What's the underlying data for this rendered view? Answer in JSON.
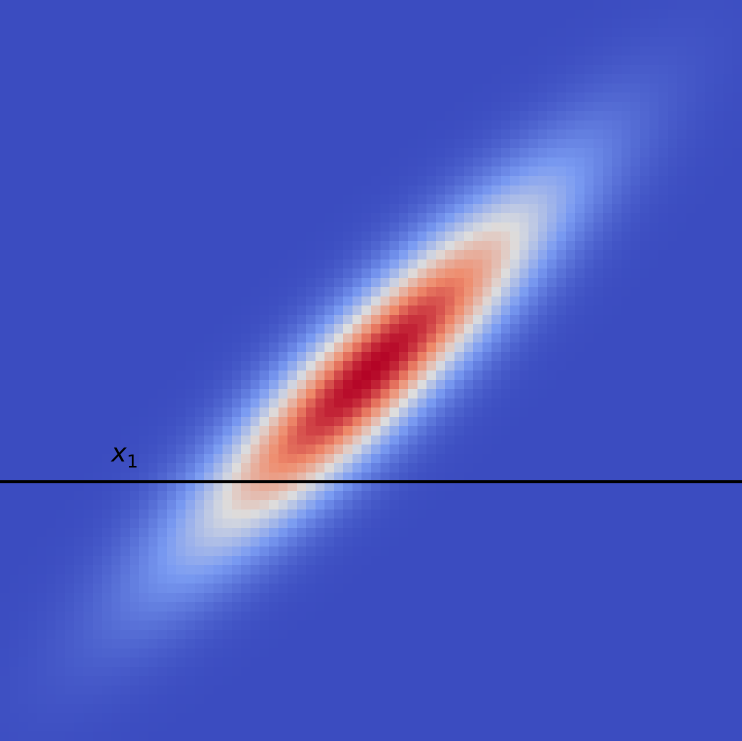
{
  "chart_data": {
    "type": "heatmap",
    "title": "",
    "xlabel": "",
    "ylabel": "",
    "colormap": "coolwarm",
    "colors": {
      "low": "#3b4cc0",
      "mid": "#dddddd",
      "high": "#b40426",
      "line": "#000000"
    },
    "grid_cells": 80,
    "xlim": [
      -3,
      3
    ],
    "ylim": [
      -3,
      3
    ],
    "distribution": {
      "kind": "bivariate-gaussian",
      "mean": [
        0.0,
        0.0
      ],
      "std": [
        1.0,
        1.0
      ],
      "correlation": 0.9
    },
    "horizontal_line": {
      "y": -0.9,
      "label_main": "x",
      "label_sub": "1"
    },
    "grid": false,
    "axes_visible": false
  }
}
